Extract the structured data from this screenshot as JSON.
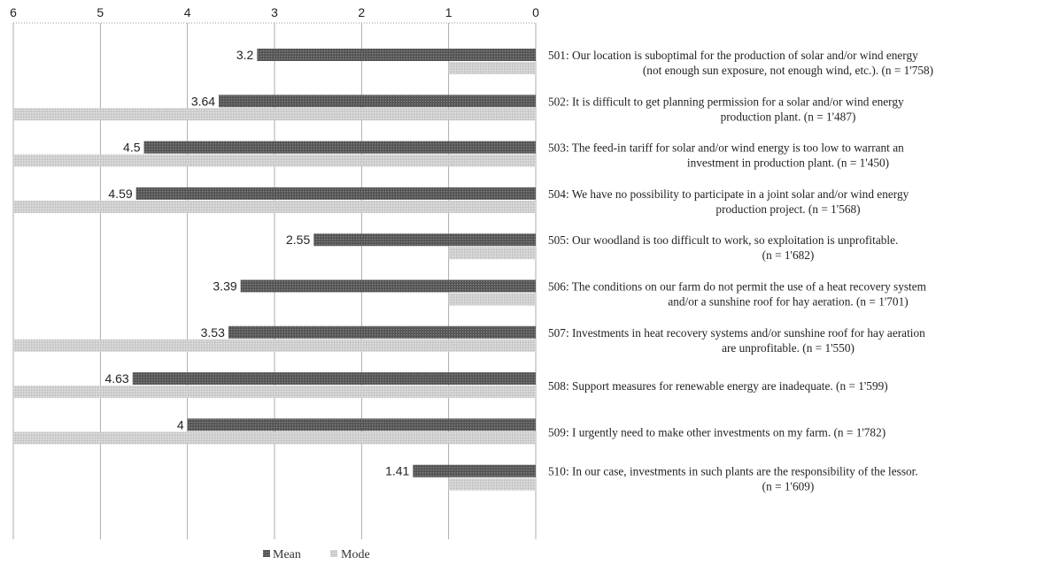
{
  "chart_data": {
    "type": "bar",
    "orientation": "horizontal",
    "x_axis_reversed": true,
    "xlim": [
      0,
      6
    ],
    "xticks": [
      6,
      5,
      4,
      3,
      2,
      1,
      0
    ],
    "grid": "vertical",
    "legend_position": "bottom",
    "colors": {
      "mean": "#5e5e5e",
      "mode": "#cfcfcf",
      "grid": "#9a9a9a"
    },
    "categories": [
      [
        "501: Our location is suboptimal for the production of solar and/or wind energy",
        "(not enough sun exposure, not enough wind, etc.). (n = 1'758)"
      ],
      [
        "502: It is difficult to get planning permission for a solar and/or wind energy",
        "production plant. (n = 1'487)"
      ],
      [
        "503: The feed-in tariff for solar and/or wind energy is too low to warrant an",
        "investment in production plant. (n = 1'450)"
      ],
      [
        "504: We have no possibility to participate in a joint solar and/or wind energy",
        "production project. (n = 1'568)"
      ],
      [
        "505: Our woodland is too difficult to work, so exploitation is unprofitable.",
        "(n = 1'682)"
      ],
      [
        "506: The conditions on our farm do not permit the use of a heat recovery system",
        "and/or a sunshine roof for hay aeration. (n = 1'701)"
      ],
      [
        "507: Investments in heat recovery systems and/or sunshine roof for hay aeration",
        "are unprofitable. (n = 1'550)"
      ],
      [
        "508: Support measures for renewable energy are inadequate. (n = 1'599)"
      ],
      [
        "509: I urgently need to make other investments on my farm. (n = 1'782)"
      ],
      [
        "510: In our case, investments in such plants are the responsibility of the lessor.",
        "(n = 1'609)"
      ]
    ],
    "series": [
      {
        "name": "Mean",
        "values": [
          3.2,
          3.64,
          4.5,
          4.59,
          2.55,
          3.39,
          3.53,
          4.63,
          4,
          1.41
        ],
        "labels": [
          "3.2",
          "3.64",
          "4.5",
          "4.59",
          "2.55",
          "3.39",
          "3.53",
          "4.63",
          "4",
          "1.41"
        ]
      },
      {
        "name": "Mode",
        "values": [
          1,
          6,
          6,
          6,
          1,
          1,
          6,
          6,
          6,
          1
        ]
      }
    ]
  }
}
